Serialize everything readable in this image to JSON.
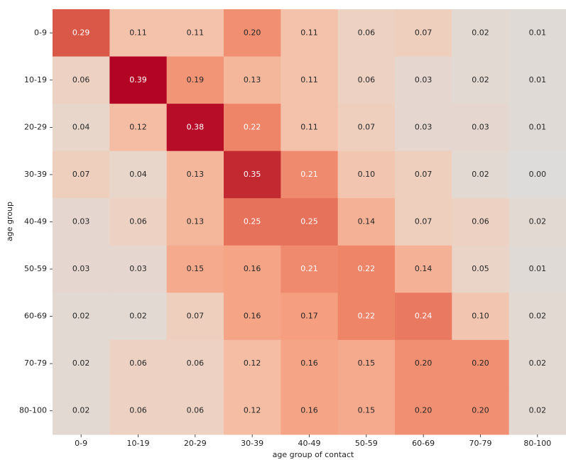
{
  "chart_data": {
    "type": "heatmap",
    "xlabel": "age group of contact",
    "ylabel": "age group",
    "x_categories": [
      "0-9",
      "10-19",
      "20-29",
      "30-39",
      "40-49",
      "50-59",
      "60-69",
      "70-79",
      "80-100"
    ],
    "y_categories": [
      "0-9",
      "10-19",
      "20-29",
      "30-39",
      "40-49",
      "50-59",
      "60-69",
      "70-79",
      "80-100"
    ],
    "values": [
      [
        0.29,
        0.11,
        0.11,
        0.2,
        0.11,
        0.06,
        0.07,
        0.02,
        0.01
      ],
      [
        0.06,
        0.39,
        0.19,
        0.13,
        0.11,
        0.06,
        0.03,
        0.02,
        0.01
      ],
      [
        0.04,
        0.12,
        0.38,
        0.22,
        0.11,
        0.07,
        0.03,
        0.03,
        0.01
      ],
      [
        0.07,
        0.04,
        0.13,
        0.35,
        0.21,
        0.1,
        0.07,
        0.02,
        0.0
      ],
      [
        0.03,
        0.06,
        0.13,
        0.25,
        0.25,
        0.14,
        0.07,
        0.06,
        0.02
      ],
      [
        0.03,
        0.03,
        0.15,
        0.16,
        0.21,
        0.22,
        0.14,
        0.05,
        0.01
      ],
      [
        0.02,
        0.02,
        0.07,
        0.16,
        0.17,
        0.22,
        0.24,
        0.1,
        0.02
      ],
      [
        0.02,
        0.06,
        0.06,
        0.12,
        0.16,
        0.15,
        0.2,
        0.2,
        0.02
      ],
      [
        0.02,
        0.06,
        0.06,
        0.12,
        0.16,
        0.15,
        0.2,
        0.2,
        0.02
      ]
    ],
    "value_labels": [
      [
        "0.29",
        "0.11",
        "0.11",
        "0.20",
        "0.11",
        "0.06",
        "0.07",
        "0.02",
        "0.01"
      ],
      [
        "0.06",
        "0.39",
        "0.19",
        "0.13",
        "0.11",
        "0.06",
        "0.03",
        "0.02",
        "0.01"
      ],
      [
        "0.04",
        "0.12",
        "0.38",
        "0.22",
        "0.11",
        "0.07",
        "0.03",
        "0.03",
        "0.01"
      ],
      [
        "0.07",
        "0.04",
        "0.13",
        "0.35",
        "0.21",
        "0.10",
        "0.07",
        "0.02",
        "0.00"
      ],
      [
        "0.03",
        "0.06",
        "0.13",
        "0.25",
        "0.25",
        "0.14",
        "0.07",
        "0.06",
        "0.02"
      ],
      [
        "0.03",
        "0.03",
        "0.15",
        "0.16",
        "0.21",
        "0.22",
        "0.14",
        "0.05",
        "0.01"
      ],
      [
        "0.02",
        "0.02",
        "0.07",
        "0.16",
        "0.17",
        "0.22",
        "0.24",
        "0.10",
        "0.02"
      ],
      [
        "0.02",
        "0.06",
        "0.06",
        "0.12",
        "0.16",
        "0.15",
        "0.20",
        "0.20",
        "0.02"
      ],
      [
        "0.02",
        "0.06",
        "0.06",
        "0.12",
        "0.16",
        "0.15",
        "0.20",
        "0.20",
        "0.02"
      ]
    ],
    "colormap": [
      "#dddcdb",
      "#ecd3c5",
      "#f4c2aa",
      "#f5a081",
      "#ee8468",
      "#de604d",
      "#c83836",
      "#b40426"
    ]
  }
}
